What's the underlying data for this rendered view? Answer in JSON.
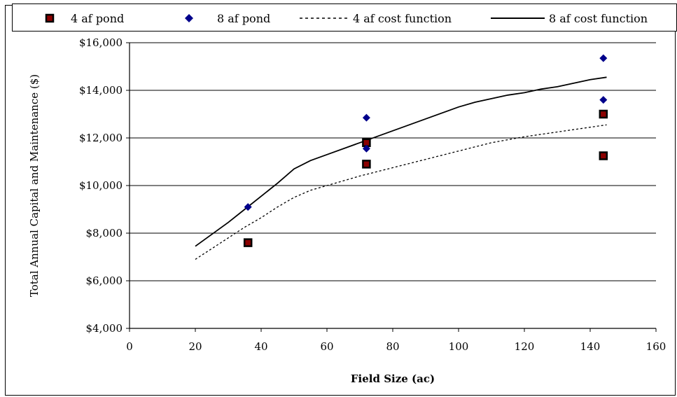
{
  "chart_data": {
    "type": "scatter",
    "xlabel": "Field Size (ac)",
    "ylabel": "Total Annual Capital and Maintenance ($)",
    "xlim": [
      0,
      160
    ],
    "ylim": [
      4000,
      16000
    ],
    "x_ticks": [
      0,
      20,
      40,
      60,
      80,
      100,
      120,
      140,
      160
    ],
    "y_ticks": [
      4000,
      6000,
      8000,
      10000,
      12000,
      14000,
      16000
    ],
    "x_tick_labels": [
      "0",
      "20",
      "40",
      "60",
      "80",
      "100",
      "120",
      "140",
      "160"
    ],
    "y_tick_labels": [
      "$4,000",
      "$6,000",
      "$8,000",
      "$10,000",
      "$12,000",
      "$14,000",
      "$16,000"
    ],
    "grid": "horizontal",
    "legend_placement": "top",
    "series": [
      {
        "name": "4 af pond",
        "kind": "points",
        "marker": "square",
        "color": "#8b0000",
        "points": [
          [
            36,
            7600
          ],
          [
            72,
            10900
          ],
          [
            72,
            11800
          ],
          [
            144,
            13000
          ],
          [
            144,
            11250
          ]
        ]
      },
      {
        "name": "8 af pond",
        "kind": "points",
        "marker": "diamond",
        "color": "#00008b",
        "points": [
          [
            36,
            9100
          ],
          [
            72,
            12850
          ],
          [
            72,
            11550
          ],
          [
            144,
            15350
          ],
          [
            144,
            13600
          ]
        ]
      },
      {
        "name": "4 af cost function",
        "kind": "line",
        "style": "dashed",
        "color": "#000000",
        "points": [
          [
            20,
            6900
          ],
          [
            25,
            7350
          ],
          [
            30,
            7800
          ],
          [
            35,
            8250
          ],
          [
            40,
            8650
          ],
          [
            45,
            9100
          ],
          [
            50,
            9500
          ],
          [
            55,
            9800
          ],
          [
            60,
            10000
          ],
          [
            70,
            10400
          ],
          [
            80,
            10750
          ],
          [
            90,
            11100
          ],
          [
            100,
            11450
          ],
          [
            110,
            11800
          ],
          [
            120,
            12050
          ],
          [
            130,
            12250
          ],
          [
            140,
            12450
          ],
          [
            145,
            12550
          ]
        ]
      },
      {
        "name": "8 af cost function",
        "kind": "line",
        "style": "solid",
        "color": "#000000",
        "points": [
          [
            20,
            7450
          ],
          [
            25,
            7950
          ],
          [
            30,
            8450
          ],
          [
            35,
            9000
          ],
          [
            40,
            9550
          ],
          [
            45,
            10100
          ],
          [
            50,
            10700
          ],
          [
            55,
            11050
          ],
          [
            60,
            11300
          ],
          [
            70,
            11800
          ],
          [
            80,
            12300
          ],
          [
            90,
            12800
          ],
          [
            100,
            13300
          ],
          [
            105,
            13500
          ],
          [
            110,
            13650
          ],
          [
            115,
            13800
          ],
          [
            120,
            13900
          ],
          [
            125,
            14050
          ],
          [
            130,
            14150
          ],
          [
            140,
            14450
          ],
          [
            145,
            14550
          ]
        ]
      }
    ]
  }
}
